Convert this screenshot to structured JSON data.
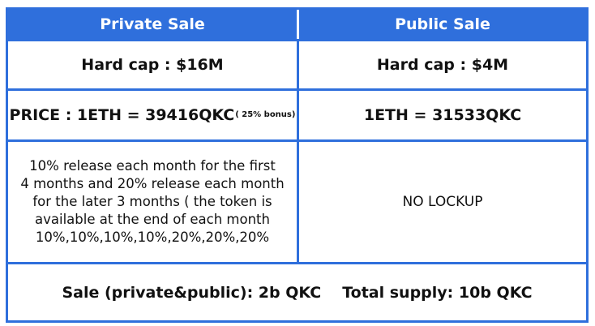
{
  "table": {
    "headers": {
      "private": "Private Sale",
      "public": "Public Sale"
    },
    "hard_cap": {
      "private": "Hard cap : $16M",
      "public": "Hard cap : $4M"
    },
    "price": {
      "private": "PRICE : 1ETH = 39416QKC",
      "private_bonus": "( 25% bonus)",
      "public": "1ETH = 31533QKC"
    },
    "release": {
      "private_lines": [
        "10% release each month for the first",
        "4 months and 20% release each month",
        "for the later 3 months ( the token is",
        "available at the end of each month",
        "10%,10%,10%,10%,20%,20%,20%"
      ],
      "public": "NO LOCKUP"
    },
    "footer": {
      "sale": "Sale (private&public): 2b QKC",
      "supply": "Total supply: 10b QKC"
    }
  },
  "colors": {
    "accent": "#2f6fdc"
  }
}
